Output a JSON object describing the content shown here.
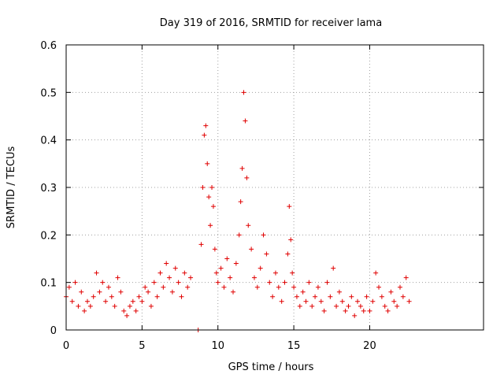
{
  "chart_data": {
    "type": "scatter",
    "title": "Day 319 of 2016, SRMTID for receiver lama",
    "xlabel": "GPS time / hours",
    "ylabel": "SRMTID / TECUs",
    "xlim": [
      0,
      27.5
    ],
    "ylim": [
      0,
      0.6
    ],
    "xticks": [
      0,
      5,
      10,
      15,
      20
    ],
    "xtick_labels": [
      "0",
      "5",
      "10",
      "15",
      "20"
    ],
    "yticks": [
      0,
      0.1,
      0.2,
      0.3,
      0.4,
      0.5,
      0.6
    ],
    "ytick_labels": [
      "0",
      "0.1",
      "0.2",
      "0.3",
      "0.4",
      "0.5",
      "0.6"
    ],
    "grid": true,
    "marker": "+",
    "color": "#e00000",
    "series": [
      {
        "name": "SRMTID",
        "x": [
          0.0,
          0.2,
          0.4,
          0.6,
          0.8,
          1.0,
          1.2,
          1.4,
          1.6,
          1.8,
          2.0,
          2.2,
          2.4,
          2.6,
          2.8,
          3.0,
          3.2,
          3.4,
          3.6,
          3.8,
          4.0,
          4.2,
          4.4,
          4.6,
          4.8,
          5.0,
          5.2,
          5.4,
          5.6,
          5.8,
          6.0,
          6.2,
          6.4,
          6.6,
          6.8,
          7.0,
          7.2,
          7.4,
          7.6,
          7.8,
          8.0,
          8.2,
          8.7,
          8.9,
          9.0,
          9.1,
          9.2,
          9.3,
          9.4,
          9.5,
          9.6,
          9.7,
          9.8,
          9.9,
          10.0,
          10.2,
          10.4,
          10.6,
          10.8,
          11.0,
          11.2,
          11.4,
          11.5,
          11.6,
          11.7,
          11.8,
          11.9,
          12.0,
          12.2,
          12.4,
          12.6,
          12.8,
          13.0,
          13.2,
          13.4,
          13.6,
          13.8,
          14.0,
          14.2,
          14.4,
          14.6,
          14.7,
          14.8,
          14.9,
          15.0,
          15.2,
          15.4,
          15.6,
          15.8,
          16.0,
          16.2,
          16.4,
          16.6,
          16.8,
          17.0,
          17.2,
          17.4,
          17.6,
          17.8,
          18.0,
          18.2,
          18.4,
          18.6,
          18.8,
          19.0,
          19.2,
          19.4,
          19.6,
          19.8,
          20.0,
          20.2,
          20.4,
          20.6,
          20.8,
          21.0,
          21.2,
          21.4,
          21.6,
          21.8,
          22.0,
          22.2,
          22.4,
          22.6
        ],
        "y": [
          0.07,
          0.09,
          0.06,
          0.1,
          0.05,
          0.08,
          0.04,
          0.06,
          0.05,
          0.07,
          0.12,
          0.08,
          0.1,
          0.06,
          0.09,
          0.07,
          0.05,
          0.11,
          0.08,
          0.04,
          0.03,
          0.05,
          0.06,
          0.04,
          0.07,
          0.06,
          0.09,
          0.08,
          0.05,
          0.1,
          0.07,
          0.12,
          0.09,
          0.14,
          0.11,
          0.08,
          0.13,
          0.1,
          0.07,
          0.12,
          0.09,
          0.11,
          0.0,
          0.18,
          0.3,
          0.41,
          0.43,
          0.35,
          0.28,
          0.22,
          0.3,
          0.26,
          0.17,
          0.12,
          0.1,
          0.13,
          0.09,
          0.15,
          0.11,
          0.08,
          0.14,
          0.2,
          0.27,
          0.34,
          0.5,
          0.44,
          0.32,
          0.22,
          0.17,
          0.11,
          0.09,
          0.13,
          0.2,
          0.16,
          0.1,
          0.07,
          0.12,
          0.09,
          0.06,
          0.1,
          0.16,
          0.26,
          0.19,
          0.12,
          0.09,
          0.07,
          0.05,
          0.08,
          0.06,
          0.1,
          0.05,
          0.07,
          0.09,
          0.06,
          0.04,
          0.1,
          0.07,
          0.13,
          0.05,
          0.08,
          0.06,
          0.04,
          0.05,
          0.07,
          0.03,
          0.06,
          0.05,
          0.04,
          0.07,
          0.04,
          0.06,
          0.12,
          0.09,
          0.07,
          0.05,
          0.04,
          0.08,
          0.06,
          0.05,
          0.09,
          0.07,
          0.11,
          0.06
        ]
      }
    ]
  }
}
